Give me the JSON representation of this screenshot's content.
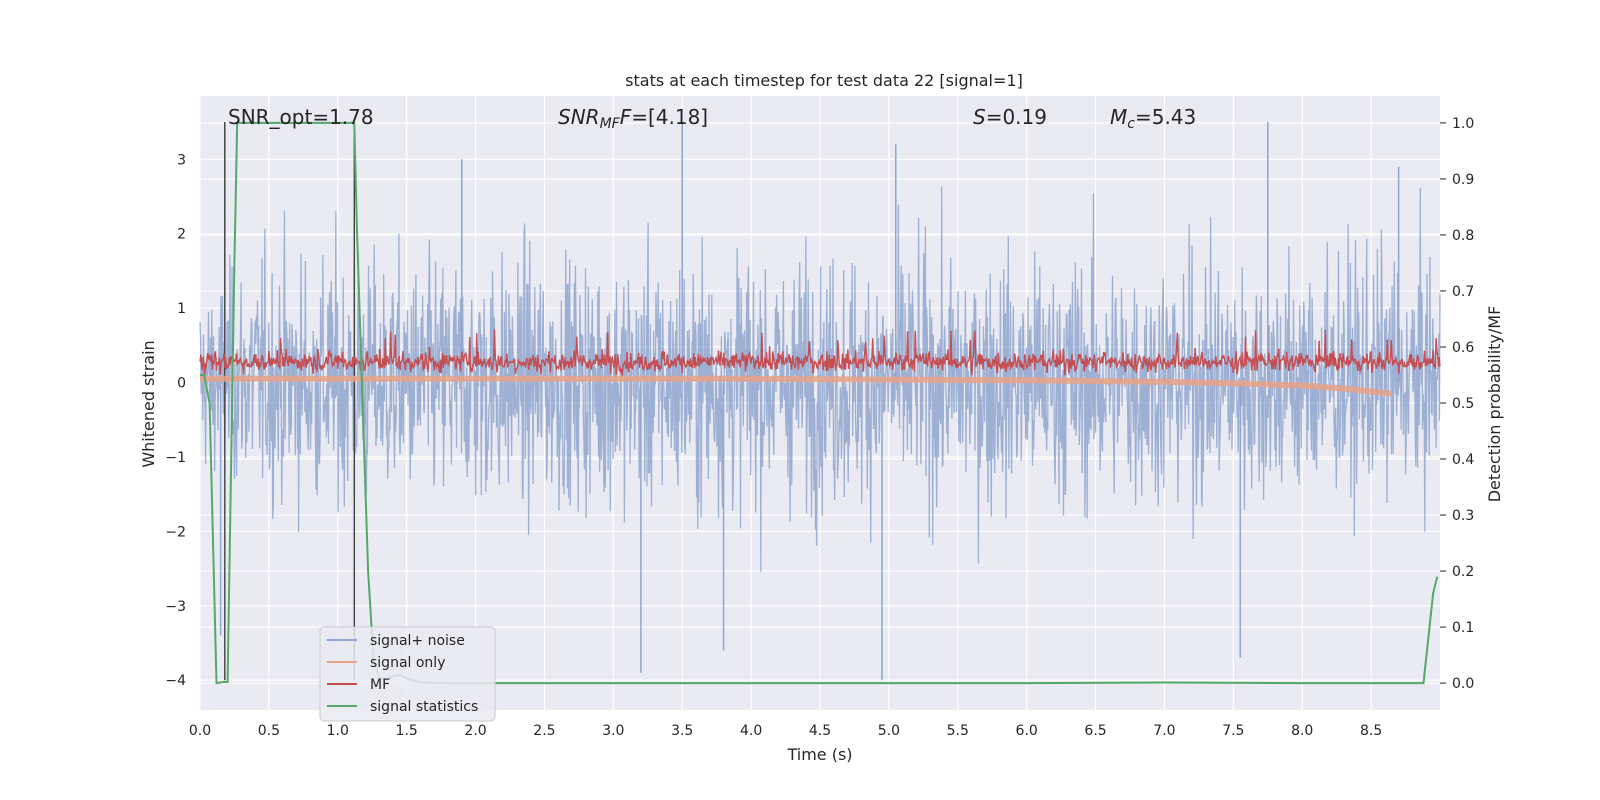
{
  "chart_data": {
    "type": "line",
    "title": "stats at each timestep for test data 22 [signal=1]",
    "xlabel": "Time (s)",
    "ylabel": "Whitened strain",
    "ylabel_right": "Detection probability/MF",
    "xlim": [
      0.0,
      9.0
    ],
    "ylim": [
      -4.4,
      3.85
    ],
    "ylim_right": [
      -0.048,
      1.048
    ],
    "x_ticks": [
      "0.0",
      "0.5",
      "1.0",
      "1.5",
      "2.0",
      "2.5",
      "3.0",
      "3.5",
      "4.0",
      "4.5",
      "5.0",
      "5.5",
      "6.0",
      "6.5",
      "7.0",
      "7.5",
      "8.0",
      "8.5"
    ],
    "y_ticks": [
      "3",
      "2",
      "1",
      "0",
      "−1",
      "−2",
      "−3",
      "−4"
    ],
    "y_ticks_right": [
      "1.0",
      "0.9",
      "0.8",
      "0.7",
      "0.6",
      "0.5",
      "0.4",
      "0.3",
      "0.2",
      "0.1",
      "0.0"
    ],
    "grid": true,
    "legend_position": "lower-left",
    "annotations": {
      "snr_opt": "SNR_opt=1.78",
      "snr_mf_main": "SNR",
      "snr_mf_sub": "MF",
      "snr_mf_value": "=[4.18]",
      "s_main": "S",
      "s_value": "=0.19",
      "mc_main": "M",
      "mc_sub": "c",
      "mc_value": "=5.43"
    },
    "vertical_lines_x": [
      0.18,
      1.12
    ],
    "series": [
      {
        "name": "signal+ noise",
        "color": "#8fa6cf",
        "description_values": "white noise, envelope approx -2.4..2.4 with peaks to 3.5 / -4.0",
        "envelope_upper": [
          1.9,
          2.6,
          2.6,
          2.4,
          2.6,
          2.6,
          2.6,
          2.6,
          2.6,
          2.6,
          2.6,
          2.6,
          2.6,
          2.6,
          2.6,
          2.6,
          2.6,
          2.6,
          2.5
        ],
        "envelope_lower": [
          -1.7,
          -2.4,
          -2.5,
          -2.4,
          -2.5,
          -2.5,
          -2.5,
          -2.5,
          -2.5,
          -2.5,
          -2.5,
          -2.5,
          -2.5,
          -2.5,
          -2.5,
          -2.5,
          -2.5,
          -2.4,
          -2.2
        ],
        "spikes": [
          [
            0.18,
            3.5
          ],
          [
            0.15,
            -3.4
          ],
          [
            1.12,
            1.6
          ],
          [
            1.12,
            -1.5
          ],
          [
            1.9,
            3.0
          ],
          [
            3.5,
            3.5
          ],
          [
            3.2,
            -3.9
          ],
          [
            3.8,
            -3.6
          ],
          [
            4.95,
            -4.0
          ],
          [
            5.05,
            3.2
          ],
          [
            7.55,
            -3.7
          ],
          [
            7.75,
            3.5
          ],
          [
            8.7,
            2.9
          ]
        ]
      },
      {
        "name": "signal only",
        "color": "#e9a287",
        "x": [
          0.0,
          1.0,
          2.0,
          3.0,
          4.0,
          5.0,
          6.0,
          7.0,
          7.5,
          8.0,
          8.3,
          8.5,
          8.65
        ],
        "y": [
          0.05,
          0.05,
          0.05,
          0.05,
          0.05,
          0.04,
          0.03,
          0.01,
          -0.01,
          -0.04,
          -0.08,
          -0.12,
          -0.15
        ]
      },
      {
        "name": "MF",
        "color": "#c44e52",
        "mean": 0.28,
        "amplitude": 0.22,
        "range": [
          0.0,
          0.9
        ]
      },
      {
        "name": "signal statistics",
        "color": "#55a868",
        "axis": "right",
        "x": [
          0.0,
          0.03,
          0.07,
          0.12,
          0.17,
          0.2,
          0.22,
          0.25,
          0.27,
          0.3,
          0.6,
          0.9,
          1.1,
          1.12,
          1.14,
          1.18,
          1.22,
          1.26,
          1.3,
          1.35,
          1.4,
          1.45,
          1.5,
          1.6,
          1.8,
          2.5,
          4.0,
          6.0,
          7.0,
          8.0,
          8.5,
          8.88,
          8.95,
          8.98
        ],
        "y": [
          0.55,
          0.55,
          0.5,
          0.0,
          0.002,
          0.002,
          0.3,
          0.75,
          1.0,
          1.0,
          1.0,
          1.0,
          1.0,
          1.0,
          0.8,
          0.5,
          0.2,
          0.04,
          0.01,
          0.005,
          0.012,
          0.015,
          0.008,
          0.001,
          0.0,
          0.0,
          0.0,
          0.0,
          0.001,
          0.0,
          0.0,
          0.0,
          0.16,
          0.19
        ]
      }
    ]
  }
}
